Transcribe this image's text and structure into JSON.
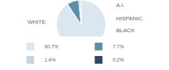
{
  "chart_data": {
    "type": "pie",
    "categories": [
      "WHITE",
      "A.I.",
      "HISPANIC",
      "BLACK"
    ],
    "values": [
      90.7,
      7.7,
      1.4,
      0.2
    ],
    "value_labels": [
      "90.7%",
      "7.7%",
      "1.4%",
      "0.2%"
    ],
    "colors": [
      "#dce6f1",
      "#5b8fa8",
      "#c5d4df",
      "#2c4a6a"
    ],
    "legend": "bottom"
  }
}
